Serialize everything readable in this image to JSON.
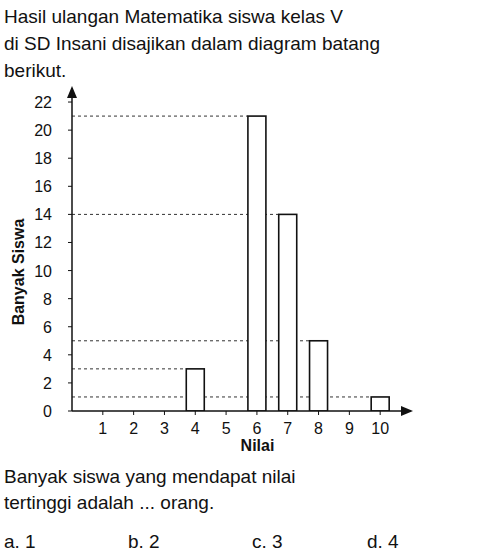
{
  "header": {
    "lines": [
      "Hasil ulangan Matematika siswa kelas V",
      "di SD Insani disajikan dalam diagram batang",
      "berikut."
    ]
  },
  "chart_data": {
    "type": "bar",
    "x_label": "Nilai",
    "y_label": "Banyak Siswa",
    "x": [
      4,
      6,
      7,
      8,
      10
    ],
    "values": [
      3,
      21,
      14,
      5,
      1
    ],
    "color": "#ffffff",
    "xlim": [
      0,
      11
    ],
    "xticks": [
      1,
      2,
      3,
      4,
      5,
      6,
      7,
      8,
      9,
      10
    ],
    "ylim": [
      0,
      23
    ],
    "yticks": [
      0,
      2,
      4,
      6,
      8,
      10,
      12,
      14,
      16,
      18,
      20,
      22
    ]
  },
  "question": {
    "lines": [
      "Banyak siswa yang mendapat nilai",
      "tertinggi adalah ... orang."
    ]
  },
  "options": [
    "a. 1",
    "b. 2",
    "c. 3",
    "d. 4"
  ]
}
